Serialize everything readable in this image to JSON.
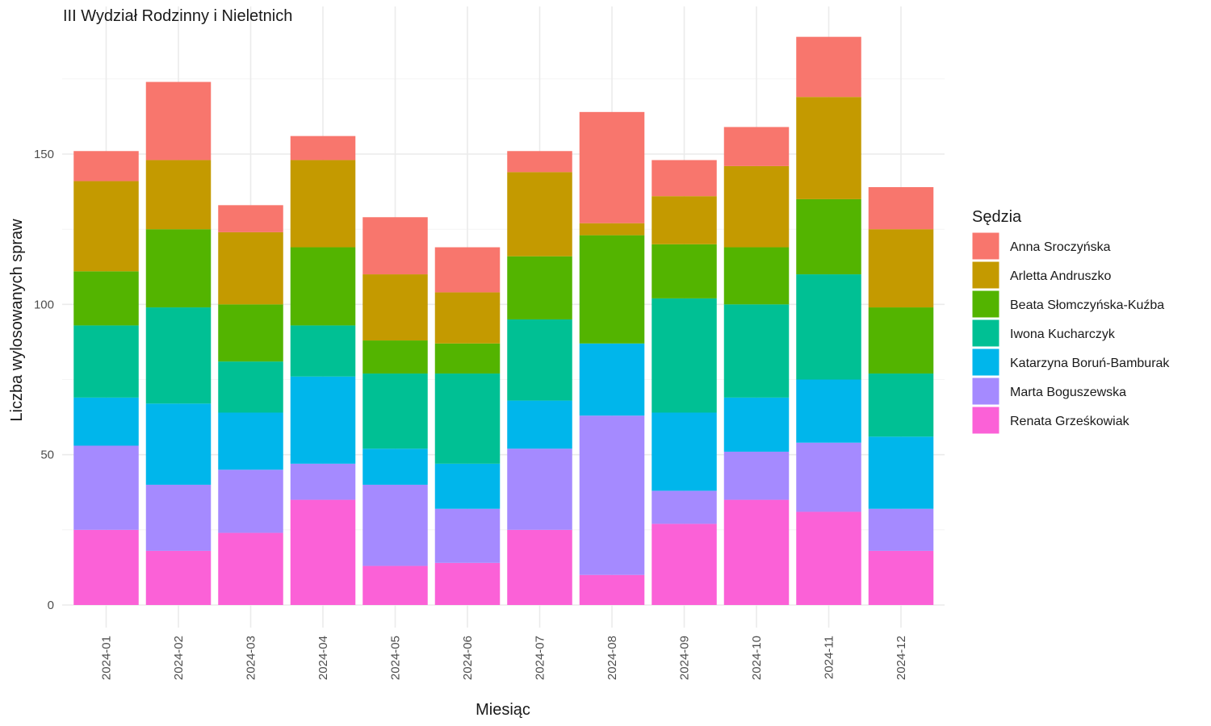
{
  "chart_data": {
    "type": "bar",
    "stacked": true,
    "title": "III Wydział Rodzinny i Nieletnich",
    "xlabel": "Miesiąc",
    "ylabel": "Liczba wylosowanych spraw",
    "ylim": [
      0,
      200
    ],
    "yticks": [
      0,
      50,
      100,
      150
    ],
    "grid": true,
    "legend_title": "Sędzia",
    "legend_position": "right",
    "categories": [
      "2024-01",
      "2024-02",
      "2024-03",
      "2024-04",
      "2024-05",
      "2024-06",
      "2024-07",
      "2024-08",
      "2024-09",
      "2024-10",
      "2024-11",
      "2024-12"
    ],
    "series": [
      {
        "name": "Anna Sroczyńska",
        "color": "#F8766D",
        "values": [
          10,
          26,
          9,
          8,
          19,
          15,
          7,
          37,
          12,
          13,
          20,
          14
        ]
      },
      {
        "name": "Arletta Andruszko",
        "color": "#C49A00",
        "values": [
          30,
          23,
          24,
          29,
          22,
          17,
          28,
          4,
          16,
          27,
          34,
          26
        ]
      },
      {
        "name": "Beata Słomczyńska-Kuźba",
        "color": "#53B400",
        "values": [
          18,
          26,
          19,
          26,
          11,
          10,
          21,
          36,
          18,
          19,
          25,
          22
        ]
      },
      {
        "name": "Iwona Kucharczyk",
        "color": "#00C094",
        "values": [
          24,
          32,
          17,
          17,
          25,
          30,
          27,
          0,
          38,
          31,
          35,
          21
        ]
      },
      {
        "name": "Katarzyna Boruń-Bamburak",
        "color": "#00B6EB",
        "values": [
          16,
          27,
          19,
          29,
          12,
          15,
          16,
          24,
          26,
          18,
          21,
          24
        ]
      },
      {
        "name": "Marta Boguszewska",
        "color": "#A58AFF",
        "values": [
          28,
          22,
          21,
          12,
          27,
          18,
          27,
          53,
          11,
          16,
          23,
          14
        ]
      },
      {
        "name": "Renata Grześkowiak",
        "color": "#FB61D7",
        "values": [
          25,
          18,
          24,
          35,
          13,
          14,
          25,
          10,
          27,
          35,
          31,
          18
        ]
      }
    ]
  }
}
